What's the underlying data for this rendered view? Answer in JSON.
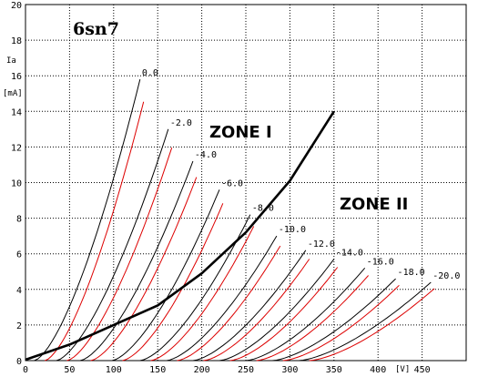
{
  "chart_data": {
    "type": "line",
    "title": "6sn7",
    "xlabel": "[V]",
    "ylabel_top": "Ia",
    "ylabel_unit": "[mA]",
    "xlim": [
      0,
      500
    ],
    "ylim": [
      0,
      20
    ],
    "grid": true,
    "x_ticks": [
      0,
      50,
      100,
      150,
      200,
      250,
      300,
      350,
      400,
      450
    ],
    "y_ticks": [
      0,
      2,
      4,
      6,
      8,
      10,
      12,
      14,
      16,
      18,
      20
    ],
    "zone_labels": {
      "zone1": "ZONE I",
      "zone2": "ZONE II"
    },
    "colors": {
      "model": "#000000",
      "measured": "#dd0000",
      "grid": "#000000",
      "boundary": "#000000"
    },
    "series": [
      {
        "name": "0.0",
        "x0": 10,
        "x_top": 130,
        "y_top": 15.8
      },
      {
        "name": "-2.0",
        "x0": 35,
        "x_top": 162,
        "y_top": 13.0
      },
      {
        "name": "-4.0",
        "x0": 62,
        "x_top": 190,
        "y_top": 11.2
      },
      {
        "name": "-6.0",
        "x0": 98,
        "x_top": 220,
        "y_top": 9.6
      },
      {
        "name": "-8.0",
        "x0": 130,
        "x_top": 255,
        "y_top": 8.2
      },
      {
        "name": "-10.0",
        "x0": 160,
        "x_top": 285,
        "y_top": 7.0
      },
      {
        "name": "-12.0",
        "x0": 190,
        "x_top": 318,
        "y_top": 6.2
      },
      {
        "name": "-14.0",
        "x0": 220,
        "x_top": 350,
        "y_top": 5.7
      },
      {
        "name": "-16.0",
        "x0": 250,
        "x_top": 385,
        "y_top": 5.2
      },
      {
        "name": "-18.0",
        "x0": 280,
        "x_top": 420,
        "y_top": 4.6
      },
      {
        "name": "-20.0",
        "x0": 310,
        "x_top": 460,
        "y_top": 4.4
      }
    ],
    "boundary": {
      "x": [
        0,
        50,
        100,
        150,
        200,
        250,
        300,
        350
      ],
      "y": [
        0.05,
        0.9,
        2.0,
        3.1,
        4.9,
        7.2,
        10.1,
        14.0
      ]
    }
  }
}
